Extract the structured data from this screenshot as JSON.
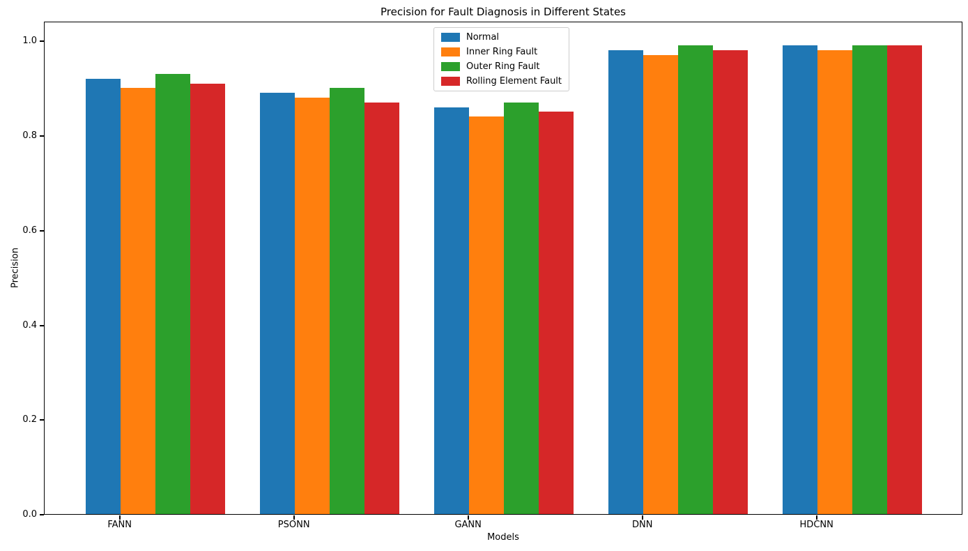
{
  "figure": {
    "background": "#ffffff",
    "spine_color": "#000000"
  },
  "chart_data": {
    "type": "bar",
    "title": "Precision for Fault Diagnosis in Different States",
    "xlabel": "Models",
    "ylabel": "Precision",
    "categories": [
      "FANN",
      "PSONN",
      "GANN",
      "DNN",
      "HDCNN"
    ],
    "series": [
      {
        "name": "Normal",
        "color": "#1f77b4",
        "values": [
          0.92,
          0.89,
          0.86,
          0.98,
          0.99
        ]
      },
      {
        "name": "Inner Ring Fault",
        "color": "#ff7f0e",
        "values": [
          0.9,
          0.88,
          0.84,
          0.97,
          0.98
        ]
      },
      {
        "name": "Outer Ring Fault",
        "color": "#2ca02c",
        "values": [
          0.93,
          0.9,
          0.87,
          0.99,
          0.99
        ]
      },
      {
        "name": "Rolling Element Fault",
        "color": "#d62728",
        "values": [
          0.91,
          0.87,
          0.85,
          0.98,
          0.99
        ]
      }
    ],
    "ylim": [
      0.0,
      1.042
    ],
    "yticks": [
      0.0,
      0.2,
      0.4,
      0.6,
      0.8,
      1.0
    ],
    "ytick_labels": [
      "0.0",
      "0.2",
      "0.4",
      "0.6",
      "0.8",
      "1.0"
    ],
    "grid": false,
    "legend_position": "upper center"
  }
}
